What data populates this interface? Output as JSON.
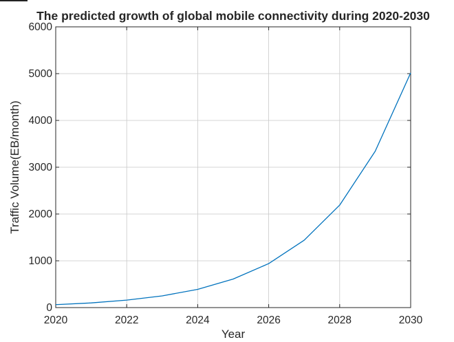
{
  "chart_data": {
    "type": "line",
    "title": "The predicted growth of global mobile connectivity during 2020-2030",
    "xlabel": "Year",
    "ylabel": "Traffic Volume(EB/month)",
    "xlim": [
      2020,
      2030
    ],
    "ylim": [
      0,
      6000
    ],
    "grid": true,
    "x_ticks": [
      2020,
      2022,
      2024,
      2026,
      2028,
      2030
    ],
    "y_ticks": [
      0,
      1000,
      2000,
      3000,
      4000,
      5000,
      6000
    ],
    "series": [
      {
        "color": "#0072BD",
        "x": [
          2020,
          2021,
          2022,
          2023,
          2024,
          2025,
          2026,
          2027,
          2028,
          2029,
          2030
        ],
        "y": [
          62,
          100,
          160,
          250,
          390,
          610,
          940,
          1440,
          2190,
          3340,
          5016
        ]
      }
    ]
  },
  "colors": {
    "axis": "#262626",
    "grid": "#c8c8c8",
    "line": "#0072BD"
  }
}
